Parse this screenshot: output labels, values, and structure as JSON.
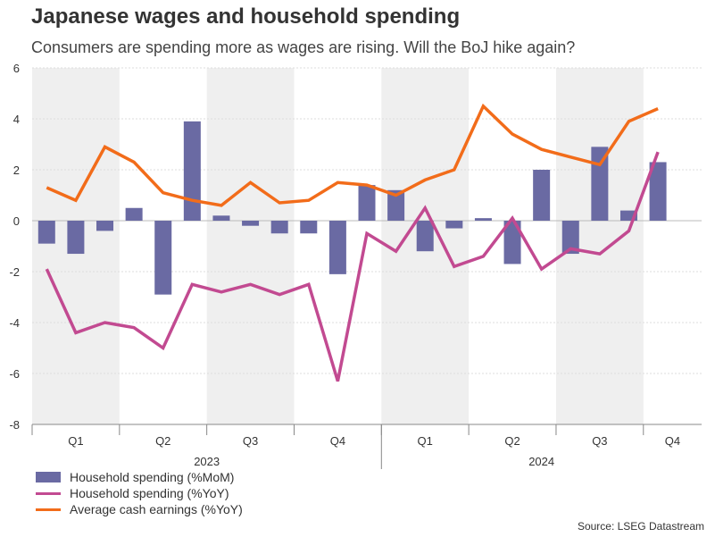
{
  "title": "Japanese wages and household spending",
  "subtitle": "Consumers are spending more as wages are rising. Will the BoJ hike again?",
  "source": "Source: LSEG Datastream",
  "chart_data": {
    "type": "bar+line",
    "ylim": [
      -8,
      6
    ],
    "yticks": [
      "6",
      "4",
      "2",
      "0",
      "-2",
      "-4",
      "-6",
      "-8"
    ],
    "grid": true,
    "months": [
      "Jan 2023",
      "Feb 2023",
      "Mar 2023",
      "Apr 2023",
      "May 2023",
      "Jun 2023",
      "Jul 2023",
      "Aug 2023",
      "Sep 2023",
      "Oct 2023",
      "Nov 2023",
      "Dec 2023",
      "Jan 2024",
      "Feb 2024",
      "Mar 2024",
      "Apr 2024",
      "May 2024",
      "Jun 2024",
      "Jul 2024",
      "Aug 2024",
      "Sep 2024",
      "Oct 2024",
      "Nov 2024"
    ],
    "quarters": [
      "Q1",
      "Q2",
      "Q3",
      "Q4",
      "Q1",
      "Q2",
      "Q3",
      "Q4"
    ],
    "years": [
      "2023",
      "2024"
    ],
    "series": [
      {
        "name": "Household spending (%MoM)",
        "kind": "bar",
        "color": "#6a6aa3",
        "values": [
          -0.9,
          -1.3,
          -0.4,
          0.5,
          -2.9,
          3.9,
          0.2,
          -0.2,
          -0.5,
          -0.5,
          -2.1,
          1.4,
          1.2,
          -1.2,
          -0.3,
          0.1,
          -1.7,
          2.0,
          -1.3,
          2.9,
          0.4,
          2.3,
          null
        ]
      },
      {
        "name": "Household spending (%YoY)",
        "kind": "line",
        "color": "#c24a91",
        "values": [
          -1.9,
          -4.4,
          -4.0,
          -4.2,
          -5.0,
          -2.5,
          -2.8,
          -2.5,
          -2.9,
          -2.5,
          -6.3,
          -0.5,
          -1.2,
          0.5,
          -1.8,
          -1.4,
          0.1,
          -1.9,
          -1.1,
          -1.3,
          -0.4,
          2.7,
          null
        ]
      },
      {
        "name": "Average cash earnings (%YoY)",
        "kind": "line",
        "color": "#f26c1a",
        "values": [
          1.3,
          0.8,
          2.9,
          2.3,
          1.1,
          0.8,
          0.6,
          1.5,
          0.7,
          0.8,
          1.5,
          1.4,
          1.0,
          1.6,
          2.0,
          4.5,
          3.4,
          2.8,
          2.5,
          2.2,
          3.9,
          4.4,
          null
        ]
      }
    ]
  }
}
